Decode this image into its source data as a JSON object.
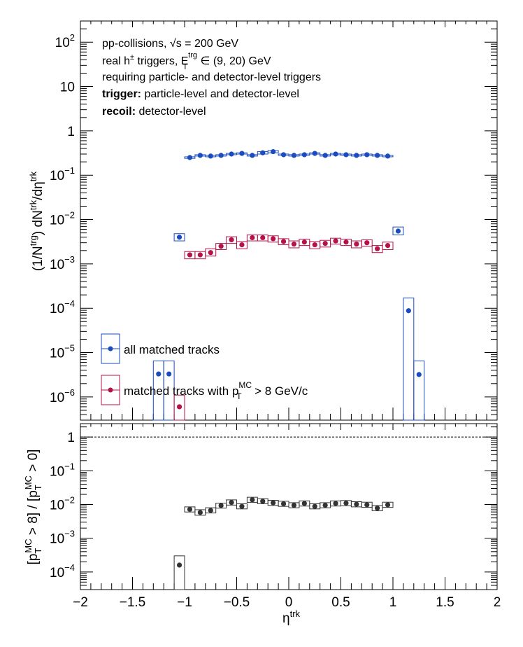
{
  "chart_data": [
    {
      "type": "scatter",
      "panel": "top",
      "xlabel": "η",
      "xlabel_sup": "trk",
      "ylabel": "(1/N^trg) dN^trk/dη^trk",
      "xlim": [
        -2,
        2
      ],
      "ylim": [
        3e-07,
        300
      ],
      "yscale": "log",
      "grid": false,
      "legend_position": "bottom-left",
      "annotations": {
        "line1": "pp-collisions, √s = 200 GeV",
        "line2_pre": "real h",
        "line2_sup": "±",
        "line2_mid": " triggers, E",
        "line2_sub": "T",
        "line2_sup2": "trg",
        "line2_post": " ∈ (9, 20) GeV",
        "line3": "requiring particle- and detector-level triggers",
        "line4_bold": "trigger:",
        "line4_rest": " particle-level and detector-level",
        "line5_bold": "recoil:",
        "line5_rest": " detector-level"
      },
      "y_ticks": [
        {
          "value": 100,
          "base": "10",
          "exp": "2"
        },
        {
          "value": 10,
          "base": "10",
          "exp": ""
        },
        {
          "value": 1,
          "base": "1",
          "exp": ""
        },
        {
          "value": 0.1,
          "base": "10",
          "exp": "−1"
        },
        {
          "value": 0.01,
          "base": "10",
          "exp": "−2"
        },
        {
          "value": 0.001,
          "base": "10",
          "exp": "−3"
        },
        {
          "value": 0.0001,
          "base": "10",
          "exp": "−4"
        },
        {
          "value": 1e-05,
          "base": "10",
          "exp": "−5"
        },
        {
          "value": 1e-06,
          "base": "10",
          "exp": "−6"
        }
      ],
      "series": [
        {
          "name": "all matched tracks",
          "color": "#1a4bbf",
          "bin_width": 0.1,
          "x": [
            -1.25,
            -1.15,
            -0.95,
            -0.85,
            -0.75,
            -0.65,
            -0.55,
            -0.45,
            -0.35,
            -0.25,
            -0.15,
            -0.05,
            0.05,
            0.15,
            0.25,
            0.35,
            0.45,
            0.55,
            0.65,
            0.75,
            0.85,
            0.95,
            1.05,
            1.15,
            1.25
          ],
          "y": [
            3.3e-06,
            3.3e-06,
            0.25,
            0.28,
            0.27,
            0.28,
            0.3,
            0.31,
            0.28,
            0.32,
            0.34,
            0.29,
            0.28,
            0.29,
            0.31,
            0.28,
            0.3,
            0.29,
            0.28,
            0.29,
            0.28,
            0.27,
            0.0055,
            8.8e-05,
            3.2e-06
          ],
          "sys_low": [
            3e-07,
            3e-07,
            0.24,
            0.27,
            0.26,
            0.27,
            0.29,
            0.3,
            0.27,
            0.3,
            0.32,
            0.28,
            0.27,
            0.28,
            0.3,
            0.27,
            0.29,
            0.28,
            0.27,
            0.28,
            0.27,
            0.26,
            0.0045,
            3e-07,
            3e-07
          ],
          "sys_high": [
            6.5e-06,
            6.5e-06,
            0.26,
            0.29,
            0.28,
            0.29,
            0.31,
            0.32,
            0.29,
            0.34,
            0.36,
            0.3,
            0.29,
            0.3,
            0.32,
            0.29,
            0.31,
            0.3,
            0.29,
            0.3,
            0.29,
            0.28,
            0.0068,
            0.00017,
            6.5e-06
          ]
        },
        {
          "name": "matched tracks with p_T^MC > 8 GeV/c",
          "color": "#b5124a",
          "bin_width": 0.1,
          "x": [
            -1.05,
            -0.95,
            -0.85,
            -0.75,
            -0.65,
            -0.55,
            -0.45,
            -0.35,
            -0.25,
            -0.15,
            -0.05,
            0.05,
            0.15,
            0.25,
            0.35,
            0.45,
            0.55,
            0.65,
            0.75,
            0.85,
            0.95
          ],
          "y": [
            6e-07,
            0.0016,
            0.0016,
            0.0018,
            0.0025,
            0.0035,
            0.0027,
            0.0039,
            0.0039,
            0.0037,
            0.0032,
            0.0028,
            0.0031,
            0.0027,
            0.0029,
            0.0033,
            0.0031,
            0.0028,
            0.003,
            0.0022,
            0.0026
          ],
          "sys_low": [
            3e-07,
            0.0013,
            0.0013,
            0.0015,
            0.0021,
            0.0029,
            0.0022,
            0.0033,
            0.0033,
            0.0031,
            0.0027,
            0.0023,
            0.0026,
            0.0022,
            0.0024,
            0.0028,
            0.0026,
            0.0023,
            0.0025,
            0.0018,
            0.0021
          ],
          "sys_high": [
            1.1e-06,
            0.0019,
            0.0019,
            0.0022,
            0.0029,
            0.0041,
            0.0032,
            0.0045,
            0.0045,
            0.0043,
            0.0037,
            0.0033,
            0.0036,
            0.0032,
            0.0034,
            0.0038,
            0.0036,
            0.0033,
            0.0035,
            0.0026,
            0.0031
          ]
        },
        {
          "name": "all matched tracks outlier",
          "color": "#1a4bbf",
          "bin_width": 0.1,
          "x": [
            -1.05
          ],
          "y": [
            0.004
          ],
          "sys_low": [
            0.0033
          ],
          "sys_high": [
            0.0048
          ]
        }
      ]
    },
    {
      "type": "scatter",
      "panel": "bottom",
      "xlabel": "η",
      "xlabel_sup": "trk",
      "ylabel": "[p_T^MC > 8] / [p_T^MC > 0]",
      "xlim": [
        -2,
        2
      ],
      "ylim": [
        3e-05,
        2.5
      ],
      "yscale": "log",
      "reference_line": 1,
      "x_ticks": [
        "−2",
        "−1.5",
        "−1",
        "−0.5",
        "0",
        "0.5",
        "1",
        "1.5",
        "2"
      ],
      "y_ticks": [
        {
          "value": 1,
          "base": "1",
          "exp": ""
        },
        {
          "value": 0.1,
          "base": "10",
          "exp": "−1"
        },
        {
          "value": 0.01,
          "base": "10",
          "exp": "−2"
        },
        {
          "value": 0.001,
          "base": "10",
          "exp": "−3"
        },
        {
          "value": 0.0001,
          "base": "10",
          "exp": "−4"
        }
      ],
      "series": [
        {
          "name": "ratio",
          "color": "#333333",
          "bin_width": 0.1,
          "x": [
            -1.05,
            -0.95,
            -0.85,
            -0.75,
            -0.65,
            -0.55,
            -0.45,
            -0.35,
            -0.25,
            -0.15,
            -0.05,
            0.05,
            0.15,
            0.25,
            0.35,
            0.45,
            0.55,
            0.65,
            0.75,
            0.85,
            0.95
          ],
          "y": [
            0.00016,
            0.0072,
            0.0058,
            0.0067,
            0.0093,
            0.0115,
            0.0088,
            0.0138,
            0.0125,
            0.0112,
            0.0105,
            0.0095,
            0.0108,
            0.0088,
            0.0095,
            0.0108,
            0.011,
            0.0102,
            0.0098,
            0.0078,
            0.0098
          ],
          "sys_low": [
            3e-05,
            0.006,
            0.0048,
            0.0056,
            0.0078,
            0.0096,
            0.0074,
            0.0116,
            0.0105,
            0.0094,
            0.0088,
            0.008,
            0.009,
            0.0074,
            0.008,
            0.009,
            0.0092,
            0.0085,
            0.0082,
            0.0065,
            0.0082
          ],
          "sys_high": [
            0.0003,
            0.0085,
            0.007,
            0.008,
            0.011,
            0.0137,
            0.0105,
            0.0164,
            0.0149,
            0.0133,
            0.0125,
            0.0113,
            0.0128,
            0.0105,
            0.0113,
            0.0128,
            0.0131,
            0.0121,
            0.0117,
            0.0093,
            0.0117
          ]
        }
      ]
    }
  ],
  "legend": {
    "all_tracks": "all matched tracks",
    "highpt_pre": "matched tracks with p",
    "highpt_sup": "MC",
    "highpt_sub": "T",
    "highpt_post": " > 8 GeV/c"
  }
}
